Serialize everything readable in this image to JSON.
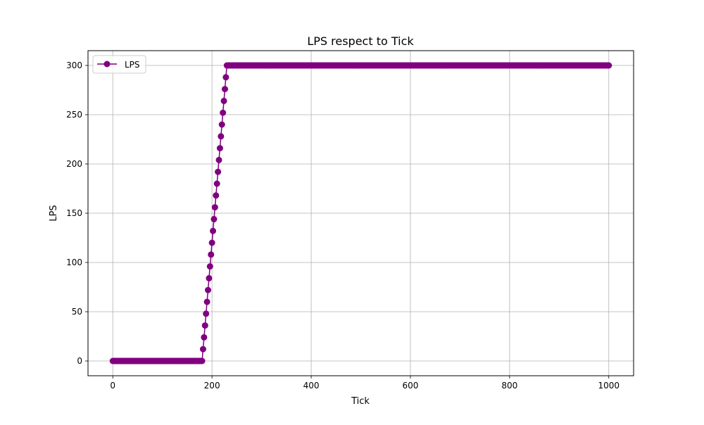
{
  "chart_data": {
    "type": "line",
    "title": "LPS respect to Tick",
    "xlabel": "Tick",
    "ylabel": "LPS",
    "xlim": [
      -50,
      1050
    ],
    "ylim": [
      -15,
      315
    ],
    "xticks": [
      0,
      200,
      400,
      600,
      800,
      1000
    ],
    "yticks": [
      0,
      50,
      100,
      150,
      200,
      250,
      300
    ],
    "grid": true,
    "legend_position": "upper-left",
    "marker": "circle",
    "color": "#800080",
    "series": [
      {
        "name": "LPS",
        "x_start": 0,
        "x_end": 1000,
        "x_step": 2,
        "segments": [
          {
            "x_from": 0,
            "x_to": 180,
            "y_from": 0,
            "y_to": 0
          },
          {
            "x_from": 180,
            "x_to": 230,
            "y_from": 0,
            "y_to": 300
          },
          {
            "x_from": 230,
            "x_to": 1000,
            "y_from": 300,
            "y_to": 300
          }
        ]
      }
    ]
  }
}
